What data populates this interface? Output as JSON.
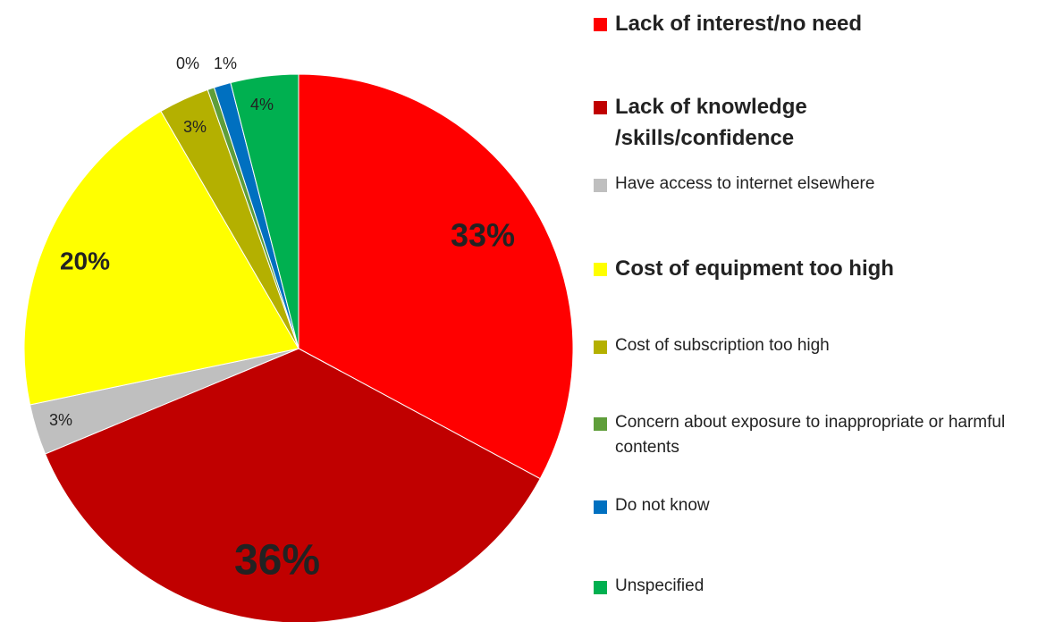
{
  "chart_data": {
    "type": "pie",
    "categories": [
      "Lack of interest/no need",
      "Lack of knowledge /skills/confidence",
      "Have access to internet elsewhere",
      "Cost of equipment too high",
      "Cost of subscription too high",
      "Concern about exposure to inappropriate or harmful contents",
      "Do not know",
      "Unspecified"
    ],
    "values": [
      33,
      36,
      3,
      20,
      3,
      0.4,
      1,
      4
    ],
    "value_labels": [
      "33%",
      "36%",
      "3%",
      "20%",
      "3%",
      "0%",
      "1%",
      "4%"
    ],
    "colors": [
      "#ff0000",
      "#c00000",
      "#bfbfbf",
      "#ffff00",
      "#b4b000",
      "#5f9e3a",
      "#0070c0",
      "#00b050"
    ],
    "legend": "right"
  }
}
